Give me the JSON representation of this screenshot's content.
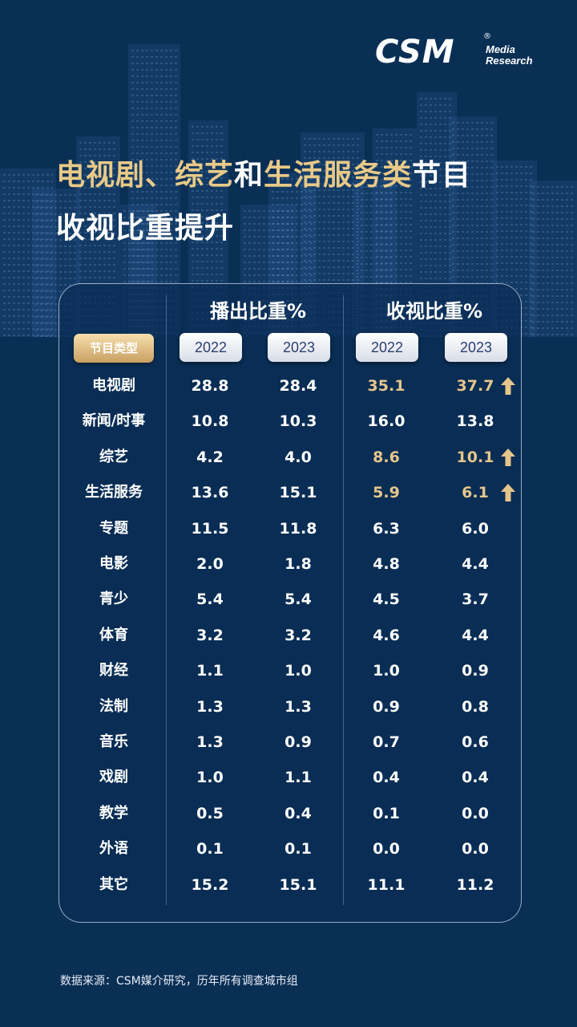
{
  "brand": {
    "logo": "CSM",
    "registered": "®",
    "line1": "Media",
    "line2": "Research"
  },
  "title": {
    "line1": [
      {
        "text": "电视剧、综艺",
        "color": "gold"
      },
      {
        "text": "和",
        "color": "white"
      },
      {
        "text": "生活服务类",
        "color": "gold"
      },
      {
        "text": "节目",
        "color": "white"
      }
    ],
    "line2": "收视比重提升"
  },
  "colors": {
    "background": "#0a2f55",
    "gold": "#e9c987",
    "highlight": "#e6c58a",
    "chip_text": "#2b3f70"
  },
  "chart_data": {
    "type": "table",
    "group_headers": [
      "播出比重%",
      "收视比重%"
    ],
    "type_label": "节目类型",
    "years": [
      "2022",
      "2023",
      "2022",
      "2023"
    ],
    "rows": [
      {
        "category": "电视剧",
        "values": [
          "28.8",
          "28.4",
          "35.1",
          "37.7"
        ],
        "highlight": true,
        "up": true
      },
      {
        "category": "新闻/时事",
        "values": [
          "10.8",
          "10.3",
          "16.0",
          "13.8"
        ],
        "highlight": false,
        "up": false
      },
      {
        "category": "综艺",
        "values": [
          "4.2",
          "4.0",
          "8.6",
          "10.1"
        ],
        "highlight": true,
        "up": true
      },
      {
        "category": "生活服务",
        "values": [
          "13.6",
          "15.1",
          "5.9",
          "6.1"
        ],
        "highlight": true,
        "up": true
      },
      {
        "category": "专题",
        "values": [
          "11.5",
          "11.8",
          "6.3",
          "6.0"
        ],
        "highlight": false,
        "up": false
      },
      {
        "category": "电影",
        "values": [
          "2.0",
          "1.8",
          "4.8",
          "4.4"
        ],
        "highlight": false,
        "up": false
      },
      {
        "category": "青少",
        "values": [
          "5.4",
          "5.4",
          "4.5",
          "3.7"
        ],
        "highlight": false,
        "up": false
      },
      {
        "category": "体育",
        "values": [
          "3.2",
          "3.2",
          "4.6",
          "4.4"
        ],
        "highlight": false,
        "up": false
      },
      {
        "category": "财经",
        "values": [
          "1.1",
          "1.0",
          "1.0",
          "0.9"
        ],
        "highlight": false,
        "up": false
      },
      {
        "category": "法制",
        "values": [
          "1.3",
          "1.3",
          "0.9",
          "0.8"
        ],
        "highlight": false,
        "up": false
      },
      {
        "category": "音乐",
        "values": [
          "1.3",
          "0.9",
          "0.7",
          "0.6"
        ],
        "highlight": false,
        "up": false
      },
      {
        "category": "戏剧",
        "values": [
          "1.0",
          "1.1",
          "0.4",
          "0.4"
        ],
        "highlight": false,
        "up": false
      },
      {
        "category": "教学",
        "values": [
          "0.5",
          "0.4",
          "0.1",
          "0.0"
        ],
        "highlight": false,
        "up": false
      },
      {
        "category": "外语",
        "values": [
          "0.1",
          "0.1",
          "0.0",
          "0.0"
        ],
        "highlight": false,
        "up": false
      },
      {
        "category": "其它",
        "values": [
          "15.2",
          "15.1",
          "11.1",
          "11.2"
        ],
        "highlight": false,
        "up": false
      }
    ]
  },
  "footer": {
    "source": "数据来源：CSM媒介研究，历年所有调查城市组"
  }
}
